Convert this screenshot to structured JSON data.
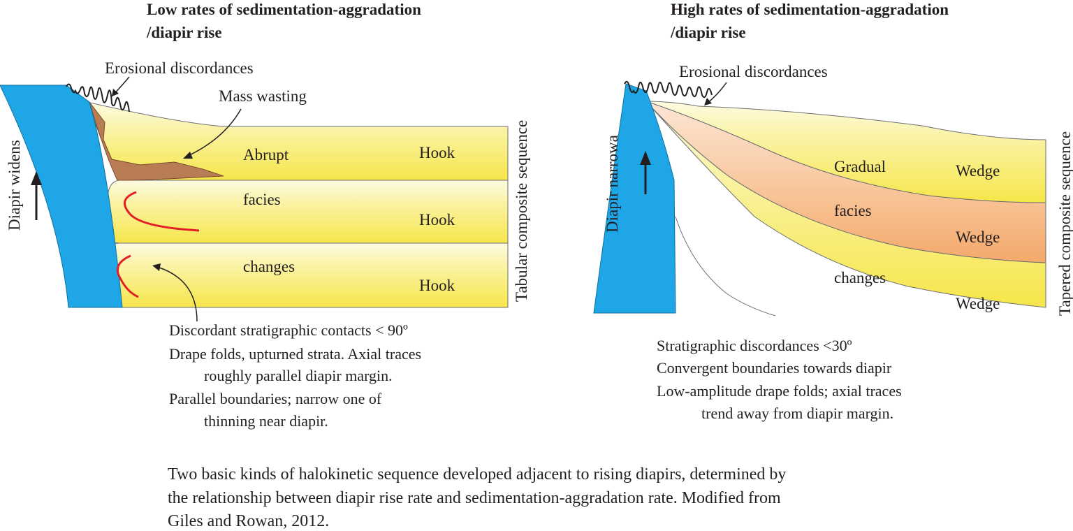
{
  "left": {
    "title_line1": "Low rates of sedimentation-aggradation",
    "title_line2": "/diapir rise",
    "erosional_label": "Erosional discordances",
    "mass_wasting_label": "Mass wasting",
    "vertical_label": "Diapir widens",
    "sequence_label": "Tabular composite sequence",
    "layer_labels": [
      "Abrupt",
      "facies",
      "changes"
    ],
    "hook_labels": [
      "Hook",
      "Hook",
      "Hook"
    ],
    "notes": [
      "Discordant stratigraphic contacts < 90º",
      "Drape folds, upturned strata. Axial traces",
      "roughly parallel diapir margin.",
      "Parallel boundaries; narrow one of",
      "thinning near diapir."
    ],
    "colors": {
      "diapir": "#1ea6e6",
      "layer": "#f9f08f",
      "mass_wasting": "#b87d55",
      "fold": "#e31e24"
    }
  },
  "right": {
    "title_line1": "High rates of sedimentation-aggradation",
    "title_line2": "/diapir rise",
    "erosional_label": "Erosional discordances",
    "vertical_label": "Diapir narrowa",
    "sequence_label": "Tapered composite sequence",
    "layer_labels": [
      "Gradual",
      "facies",
      "changes"
    ],
    "wedge_labels": [
      "Wedge",
      "Wedge",
      "Wedge"
    ],
    "notes": [
      "Stratigraphic discordances <30º",
      "Convergent boundaries towards diapir",
      "Low-amplitude drape folds; axial traces",
      "trend away from diapir margin."
    ],
    "colors": {
      "diapir": "#1ea6e6",
      "layer": "#f9f08f",
      "layer_middle": "#f6b27a"
    }
  },
  "caption": [
    "Two basic kinds of halokinetic sequence developed adjacent to rising diapirs, determined by",
    "the relationship between diapir rise rate and sedimentation-aggradation rate. Modified from",
    "Giles and Rowan, 2012."
  ]
}
